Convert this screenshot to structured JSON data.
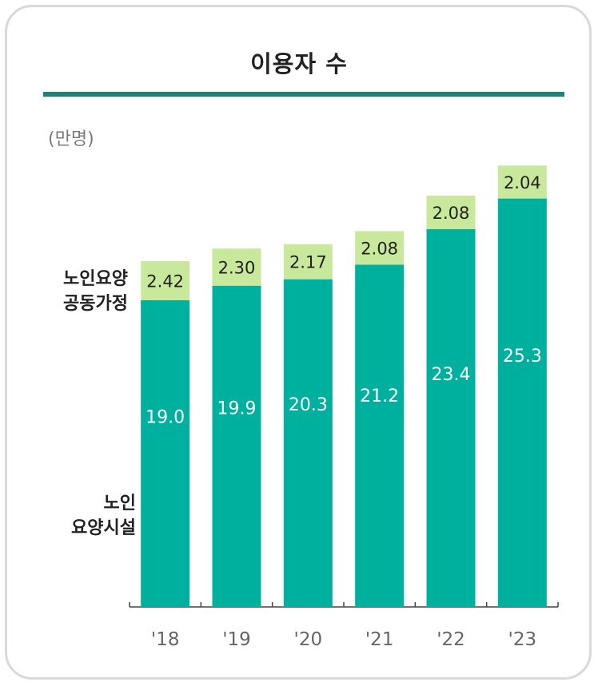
{
  "chart_data": {
    "type": "bar",
    "stacked": true,
    "title": "이용자 수",
    "unit_label": "(만명)",
    "categories": [
      "'18",
      "'19",
      "'20",
      "'21",
      "'22",
      "'23"
    ],
    "series": [
      {
        "name": "노인\n요양시설",
        "color": "#00b09f",
        "label_color": "#ffffff",
        "values": [
          19.0,
          19.9,
          20.3,
          21.2,
          23.4,
          25.3
        ],
        "labels": [
          "19.0",
          "19.9",
          "20.3",
          "21.2",
          "23.4",
          "25.3"
        ]
      },
      {
        "name": "노인요양\n공동가정",
        "color": "#c8e89b",
        "label_color": "#222222",
        "values": [
          2.42,
          2.3,
          2.17,
          2.08,
          2.08,
          2.04
        ],
        "labels": [
          "2.42",
          "2.30",
          "2.17",
          "2.08",
          "2.08",
          "2.04"
        ]
      }
    ],
    "ylim": [
      0,
      28
    ],
    "grid": false,
    "colors": {
      "rule": "#15857b",
      "axis": "#444444",
      "tick_label": "#666666"
    }
  }
}
